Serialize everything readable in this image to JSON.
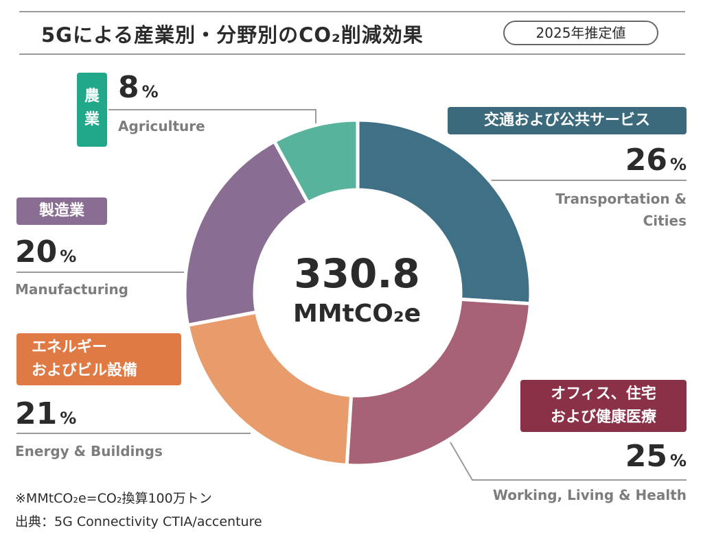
{
  "header": {
    "title": "5Gによる産業別・分野別のCO₂削減効果",
    "badge": "2025年推定値"
  },
  "center": {
    "total": "330.8",
    "unit": "MMtCO₂e"
  },
  "chart_data": {
    "type": "pie",
    "donut": true,
    "categories": [
      "交通および公共サービス",
      "オフィス、住宅および健康医療",
      "エネルギーおよびビル設備",
      "製造業",
      "農業"
    ],
    "values": [
      26,
      25,
      21,
      20,
      8
    ],
    "unit": "%",
    "colors": [
      "#3f7085",
      "#a86275",
      "#e89b6b",
      "#8a6d93",
      "#58b39d"
    ]
  },
  "segments": [
    {
      "jp": "交通および公共サービス",
      "pct": "26",
      "en1": "Transportation &",
      "en2": "Cities",
      "tag_color": "#3b6a7c"
    },
    {
      "jp1": "オフィス、住宅",
      "jp2": "および健康医療",
      "pct": "25",
      "en": "Working, Living & Health",
      "tag_color": "#8a3148"
    },
    {
      "jp1": "エネルギー",
      "jp2": "およびビル設備",
      "pct": "21",
      "en": "Energy & Buildings",
      "tag_color": "#e07a45"
    },
    {
      "jp": "製造業",
      "pct": "20",
      "en": "Manufacturing",
      "tag_color": "#8a6d93"
    },
    {
      "jp1": "農",
      "jp2": "業",
      "pct": "8",
      "en": "Agriculture",
      "tag_color": "#21a78a"
    }
  ],
  "percent_sign": "%",
  "notes": {
    "unit_note": "※MMtCO₂e=CO₂換算100万トン",
    "source": "出典：5G Connectivity CTIA/accenture"
  }
}
